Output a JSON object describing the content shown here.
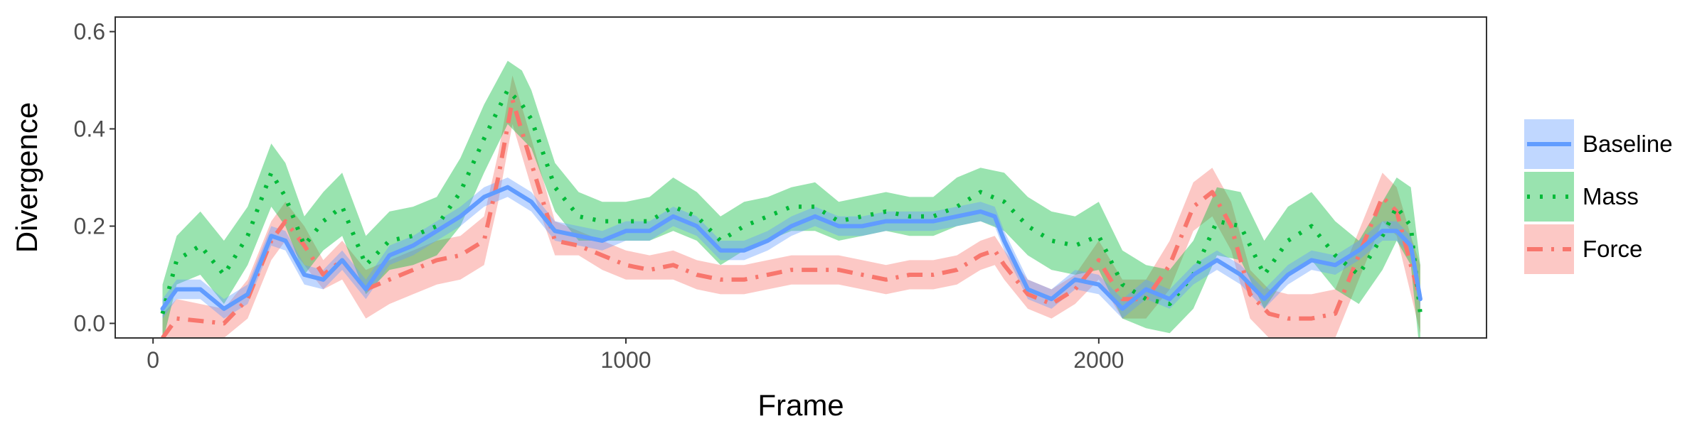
{
  "chart_data": {
    "type": "line",
    "title": "",
    "xlabel": "Frame",
    "ylabel": "Divergence",
    "xlim": [
      -80,
      2820
    ],
    "ylim": [
      -0.03,
      0.63
    ],
    "x_ticks": [
      0,
      1000,
      2000
    ],
    "x_tick_labels": [
      "0",
      "1000",
      "2000"
    ],
    "y_ticks": [
      0.0,
      0.2,
      0.4,
      0.6
    ],
    "y_tick_labels": [
      "0.0",
      "0.2",
      "0.4",
      "0.6"
    ],
    "grid": false,
    "legend_position": "right",
    "series": [
      {
        "name": "Force",
        "color": "#F8766D",
        "dash": "dashdot",
        "x": [
          20,
          50,
          100,
          150,
          200,
          250,
          280,
          320,
          360,
          400,
          450,
          500,
          550,
          600,
          650,
          700,
          730,
          760,
          800,
          850,
          900,
          950,
          1000,
          1050,
          1100,
          1150,
          1200,
          1250,
          1300,
          1350,
          1400,
          1450,
          1500,
          1550,
          1600,
          1650,
          1700,
          1750,
          1780,
          1800,
          1850,
          1900,
          1950,
          2000,
          2050,
          2100,
          2150,
          2200,
          2240,
          2280,
          2320,
          2360,
          2400,
          2450,
          2500,
          2550,
          2600,
          2630,
          2660,
          2680
        ],
        "y": [
          -0.03,
          0.01,
          0.005,
          0.0,
          0.05,
          0.17,
          0.21,
          0.16,
          0.1,
          0.13,
          0.07,
          0.09,
          0.11,
          0.13,
          0.14,
          0.17,
          0.3,
          0.46,
          0.33,
          0.17,
          0.16,
          0.14,
          0.12,
          0.11,
          0.12,
          0.1,
          0.09,
          0.09,
          0.1,
          0.11,
          0.11,
          0.11,
          0.1,
          0.09,
          0.1,
          0.1,
          0.11,
          0.14,
          0.15,
          0.12,
          0.06,
          0.04,
          0.07,
          0.13,
          0.05,
          0.05,
          0.12,
          0.24,
          0.27,
          0.2,
          0.06,
          0.02,
          0.01,
          0.01,
          0.02,
          0.14,
          0.26,
          0.23,
          0.12,
          0.05
        ],
        "lower": [
          -0.08,
          -0.04,
          -0.03,
          -0.03,
          0.01,
          0.13,
          0.17,
          0.12,
          0.07,
          0.09,
          0.01,
          0.04,
          0.06,
          0.08,
          0.09,
          0.12,
          0.25,
          0.41,
          0.28,
          0.14,
          0.14,
          0.11,
          0.09,
          0.09,
          0.09,
          0.07,
          0.06,
          0.06,
          0.07,
          0.08,
          0.08,
          0.08,
          0.07,
          0.06,
          0.07,
          0.07,
          0.08,
          0.11,
          0.12,
          0.09,
          0.03,
          0.01,
          0.04,
          0.09,
          0.01,
          0.01,
          0.07,
          0.19,
          0.22,
          0.15,
          0.01,
          -0.03,
          -0.04,
          -0.04,
          -0.03,
          0.09,
          0.21,
          0.18,
          0.06,
          -0.02
        ],
        "upper": [
          0.02,
          0.05,
          0.04,
          0.03,
          0.09,
          0.21,
          0.25,
          0.2,
          0.13,
          0.17,
          0.11,
          0.13,
          0.15,
          0.17,
          0.18,
          0.22,
          0.35,
          0.51,
          0.38,
          0.21,
          0.19,
          0.17,
          0.15,
          0.14,
          0.15,
          0.13,
          0.12,
          0.12,
          0.13,
          0.14,
          0.14,
          0.14,
          0.13,
          0.12,
          0.13,
          0.13,
          0.14,
          0.17,
          0.18,
          0.15,
          0.09,
          0.07,
          0.1,
          0.17,
          0.09,
          0.09,
          0.17,
          0.29,
          0.32,
          0.25,
          0.11,
          0.07,
          0.06,
          0.06,
          0.07,
          0.19,
          0.31,
          0.28,
          0.18,
          0.12
        ]
      },
      {
        "name": "Mass",
        "color": "#00BA38",
        "dash": "dotted",
        "x": [
          20,
          50,
          100,
          150,
          200,
          250,
          280,
          320,
          360,
          400,
          450,
          500,
          550,
          600,
          650,
          700,
          750,
          780,
          800,
          850,
          900,
          950,
          1000,
          1050,
          1100,
          1150,
          1200,
          1250,
          1300,
          1350,
          1400,
          1450,
          1500,
          1550,
          1600,
          1650,
          1700,
          1750,
          1800,
          1850,
          1900,
          1950,
          2000,
          2050,
          2100,
          2150,
          2200,
          2250,
          2300,
          2350,
          2400,
          2450,
          2500,
          2550,
          2600,
          2630,
          2660,
          2680
        ],
        "y": [
          0.02,
          0.13,
          0.16,
          0.1,
          0.18,
          0.31,
          0.26,
          0.16,
          0.21,
          0.24,
          0.12,
          0.17,
          0.18,
          0.2,
          0.27,
          0.38,
          0.48,
          0.45,
          0.42,
          0.28,
          0.22,
          0.21,
          0.21,
          0.21,
          0.24,
          0.22,
          0.17,
          0.2,
          0.22,
          0.24,
          0.24,
          0.21,
          0.22,
          0.23,
          0.22,
          0.22,
          0.24,
          0.27,
          0.25,
          0.2,
          0.17,
          0.16,
          0.18,
          0.08,
          0.05,
          0.04,
          0.1,
          0.21,
          0.2,
          0.1,
          0.17,
          0.2,
          0.14,
          0.1,
          0.18,
          0.24,
          0.2,
          0.02
        ],
        "lower": [
          -0.04,
          0.08,
          0.1,
          0.04,
          0.12,
          0.24,
          0.2,
          0.1,
          0.15,
          0.18,
          0.06,
          0.11,
          0.12,
          0.14,
          0.2,
          0.31,
          0.41,
          0.38,
          0.36,
          0.23,
          0.17,
          0.17,
          0.17,
          0.17,
          0.19,
          0.17,
          0.12,
          0.15,
          0.17,
          0.19,
          0.19,
          0.17,
          0.18,
          0.19,
          0.18,
          0.18,
          0.2,
          0.21,
          0.19,
          0.14,
          0.11,
          0.1,
          0.11,
          0.01,
          -0.01,
          -0.02,
          0.03,
          0.14,
          0.13,
          0.03,
          0.1,
          0.13,
          0.07,
          0.04,
          0.11,
          0.17,
          0.12,
          -0.07
        ],
        "upper": [
          0.08,
          0.18,
          0.23,
          0.17,
          0.24,
          0.37,
          0.33,
          0.22,
          0.27,
          0.31,
          0.18,
          0.23,
          0.24,
          0.26,
          0.34,
          0.45,
          0.54,
          0.52,
          0.48,
          0.33,
          0.27,
          0.25,
          0.25,
          0.26,
          0.3,
          0.27,
          0.22,
          0.25,
          0.26,
          0.28,
          0.29,
          0.25,
          0.26,
          0.27,
          0.26,
          0.26,
          0.3,
          0.32,
          0.31,
          0.26,
          0.23,
          0.22,
          0.25,
          0.15,
          0.12,
          0.11,
          0.17,
          0.28,
          0.27,
          0.17,
          0.24,
          0.27,
          0.21,
          0.17,
          0.25,
          0.3,
          0.28,
          0.12
        ]
      },
      {
        "name": "Baseline",
        "color": "#619CFF",
        "dash": "solid",
        "x": [
          20,
          50,
          100,
          150,
          200,
          250,
          280,
          320,
          360,
          400,
          450,
          500,
          550,
          600,
          650,
          700,
          750,
          800,
          850,
          900,
          950,
          1000,
          1050,
          1100,
          1150,
          1200,
          1250,
          1300,
          1350,
          1400,
          1450,
          1500,
          1550,
          1600,
          1650,
          1700,
          1750,
          1780,
          1800,
          1850,
          1900,
          1950,
          2000,
          2050,
          2100,
          2150,
          2200,
          2250,
          2300,
          2350,
          2400,
          2450,
          2500,
          2550,
          2600,
          2630,
          2660,
          2680
        ],
        "y": [
          0.03,
          0.07,
          0.07,
          0.03,
          0.06,
          0.18,
          0.17,
          0.1,
          0.09,
          0.13,
          0.07,
          0.14,
          0.16,
          0.19,
          0.22,
          0.26,
          0.28,
          0.25,
          0.19,
          0.18,
          0.17,
          0.19,
          0.19,
          0.22,
          0.2,
          0.15,
          0.15,
          0.17,
          0.2,
          0.22,
          0.2,
          0.2,
          0.21,
          0.21,
          0.21,
          0.22,
          0.23,
          0.22,
          0.17,
          0.07,
          0.05,
          0.09,
          0.08,
          0.03,
          0.07,
          0.05,
          0.1,
          0.13,
          0.1,
          0.05,
          0.1,
          0.13,
          0.12,
          0.15,
          0.19,
          0.19,
          0.16,
          0.05
        ],
        "lower": [
          0.01,
          0.05,
          0.05,
          0.01,
          0.04,
          0.16,
          0.15,
          0.08,
          0.07,
          0.11,
          0.05,
          0.12,
          0.14,
          0.17,
          0.2,
          0.24,
          0.26,
          0.23,
          0.17,
          0.16,
          0.15,
          0.17,
          0.17,
          0.2,
          0.18,
          0.13,
          0.13,
          0.15,
          0.18,
          0.2,
          0.18,
          0.18,
          0.19,
          0.19,
          0.19,
          0.2,
          0.21,
          0.2,
          0.15,
          0.05,
          0.03,
          0.07,
          0.06,
          0.01,
          0.05,
          0.03,
          0.08,
          0.11,
          0.08,
          0.03,
          0.08,
          0.11,
          0.1,
          0.13,
          0.17,
          0.17,
          0.14,
          0.03
        ],
        "upper": [
          0.05,
          0.09,
          0.09,
          0.05,
          0.08,
          0.2,
          0.19,
          0.12,
          0.11,
          0.15,
          0.09,
          0.16,
          0.18,
          0.21,
          0.24,
          0.28,
          0.3,
          0.27,
          0.21,
          0.2,
          0.19,
          0.21,
          0.21,
          0.24,
          0.22,
          0.17,
          0.17,
          0.19,
          0.22,
          0.24,
          0.22,
          0.22,
          0.23,
          0.23,
          0.23,
          0.24,
          0.25,
          0.24,
          0.19,
          0.09,
          0.07,
          0.11,
          0.1,
          0.05,
          0.09,
          0.07,
          0.12,
          0.15,
          0.12,
          0.07,
          0.12,
          0.15,
          0.14,
          0.17,
          0.21,
          0.21,
          0.18,
          0.07
        ]
      }
    ],
    "legend": {
      "entries": [
        {
          "label": "Baseline",
          "color": "#619CFF",
          "dash": "solid"
        },
        {
          "label": "Mass",
          "color": "#00BA38",
          "dash": "dotted"
        },
        {
          "label": "Force",
          "color": "#F8766D",
          "dash": "dashdot"
        }
      ]
    }
  }
}
